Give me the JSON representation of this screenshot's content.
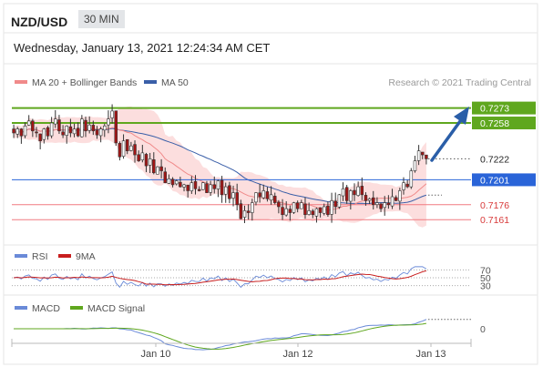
{
  "header": {
    "pair": "NZD/USD",
    "timeframe": "30 MIN",
    "datetime": "Wednesday, January 13, 2021 12:24:34 AM CET"
  },
  "legend": {
    "ma20": "MA 20 + Bollinger Bands",
    "ma50": "MA 50",
    "credit": "Research © 2021 Trading Central",
    "rsi": "RSI",
    "rsi_ma": "9MA",
    "macd": "MACD",
    "macd_signal": "MACD Signal"
  },
  "colors": {
    "resistance": "#5fa71e",
    "pivot": "#2a64d8",
    "support": "#f07a80",
    "ma20": "#f08a8a",
    "ma50": "#3a5fa8",
    "bands": "#fbd3d3",
    "arrow": "#2a5ea8",
    "candle_up": "#ffffff",
    "candle_down": "#a31515",
    "rsi": "#6a8ad8",
    "rsi_ma": "#c81e1e",
    "macd": "#6a8ad8",
    "macd_signal": "#5fa71e"
  },
  "chart_data": {
    "type": "candlestick",
    "x_ticks": [
      "Jan 10",
      "Jan 12",
      "Jan 13"
    ],
    "levels": [
      {
        "value": 0.7273,
        "label": "0.7273",
        "kind": "resistance"
      },
      {
        "value": 0.7258,
        "label": "0.7258",
        "kind": "resistance"
      },
      {
        "value": 0.7222,
        "label": "0.7222",
        "kind": "last"
      },
      {
        "value": 0.7201,
        "label": "0.7201",
        "kind": "pivot"
      },
      {
        "value": 0.7176,
        "label": "0.7176",
        "kind": "support"
      },
      {
        "value": 0.7161,
        "label": "0.7161",
        "kind": "support"
      }
    ],
    "ylim": [
      0.7142,
      0.729
    ],
    "closes": [
      0.7248,
      0.7252,
      0.7245,
      0.7255,
      0.726,
      0.725,
      0.7248,
      0.724,
      0.7252,
      0.7245,
      0.7258,
      0.7262,
      0.725,
      0.7246,
      0.7255,
      0.7248,
      0.7252,
      0.7245,
      0.7262,
      0.725,
      0.7256,
      0.725,
      0.7246,
      0.7252,
      0.7255,
      0.7262,
      0.727,
      0.7238,
      0.7224,
      0.724,
      0.723,
      0.7235,
      0.7226,
      0.722,
      0.7228,
      0.7215,
      0.7222,
      0.7208,
      0.7214,
      0.721,
      0.7198,
      0.7202,
      0.7196,
      0.72,
      0.7194,
      0.7196,
      0.719,
      0.7198,
      0.7192,
      0.719,
      0.7198,
      0.7188,
      0.7196,
      0.7192,
      0.72,
      0.7186,
      0.7194,
      0.7182,
      0.7188,
      0.7176,
      0.7162,
      0.717,
      0.7168,
      0.7178,
      0.7188,
      0.7184,
      0.719,
      0.7182,
      0.7186,
      0.7178,
      0.7174,
      0.7166,
      0.7172,
      0.7168,
      0.7178,
      0.7172,
      0.7178,
      0.7166,
      0.717,
      0.7166,
      0.7172,
      0.7168,
      0.7174,
      0.7166,
      0.718,
      0.7174,
      0.7186,
      0.7192,
      0.718,
      0.719,
      0.7186,
      0.7194,
      0.7186,
      0.718,
      0.7182,
      0.7176,
      0.7178,
      0.7172,
      0.7178,
      0.7176,
      0.7184,
      0.718,
      0.719,
      0.7198,
      0.7194,
      0.721,
      0.722,
      0.723,
      0.7226,
      0.7222
    ],
    "rsi_ticks": [
      70,
      50,
      30
    ],
    "macd_ticks": [
      0
    ]
  }
}
